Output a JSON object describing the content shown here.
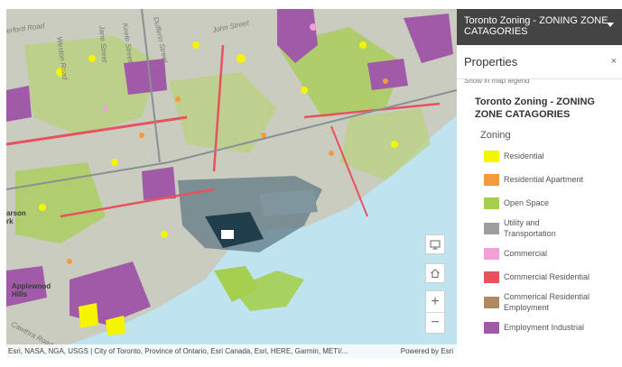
{
  "map": {
    "streets": [
      "Weston Road",
      "Jane Street",
      "Keele Street",
      "Dufferin Street",
      "John Street",
      "Cawthra Road"
    ],
    "street_partial": "erford Road",
    "places": [
      "Applewood",
      "Hills"
    ],
    "edge_label": "arson\nrk",
    "attribution": "Esri, NASA, NGA, USGS | City of Toronto, Province of Ontario, Esri Canada, Esri, HERE, Garmin, METI/...",
    "powered_by": "Powered by Esri",
    "buttons": [
      "desktop-icon",
      "home-icon",
      "zoom-in-icon",
      "zoom-out-icon"
    ],
    "zoom_in": "+",
    "zoom_out": "−"
  },
  "panel": {
    "layer_header": "Toronto Zoning - ZONING ZONE CATAGORIES",
    "title": "Properties",
    "close": "×",
    "show_in_legend": "Show in map legend",
    "layer_title": "Toronto Zoning - ZONING ZONE CATAGORIES",
    "group": "Zoning",
    "legend": [
      {
        "label": "Residential",
        "color": "#f5f500"
      },
      {
        "label": "Residential Apartment",
        "color": "#f59a3b"
      },
      {
        "label": "Open Space",
        "color": "#a5cf4f"
      },
      {
        "label": "Utility and Transportation",
        "color": "#9e9e9e"
      },
      {
        "label": "Commercial",
        "color": "#f2a0d8"
      },
      {
        "label": "Commercial Residential",
        "color": "#e8525f"
      },
      {
        "label": "Commerical Residential Employment",
        "color": "#b08962"
      },
      {
        "label": "Employment Industrial",
        "color": "#a05aa8"
      }
    ]
  }
}
